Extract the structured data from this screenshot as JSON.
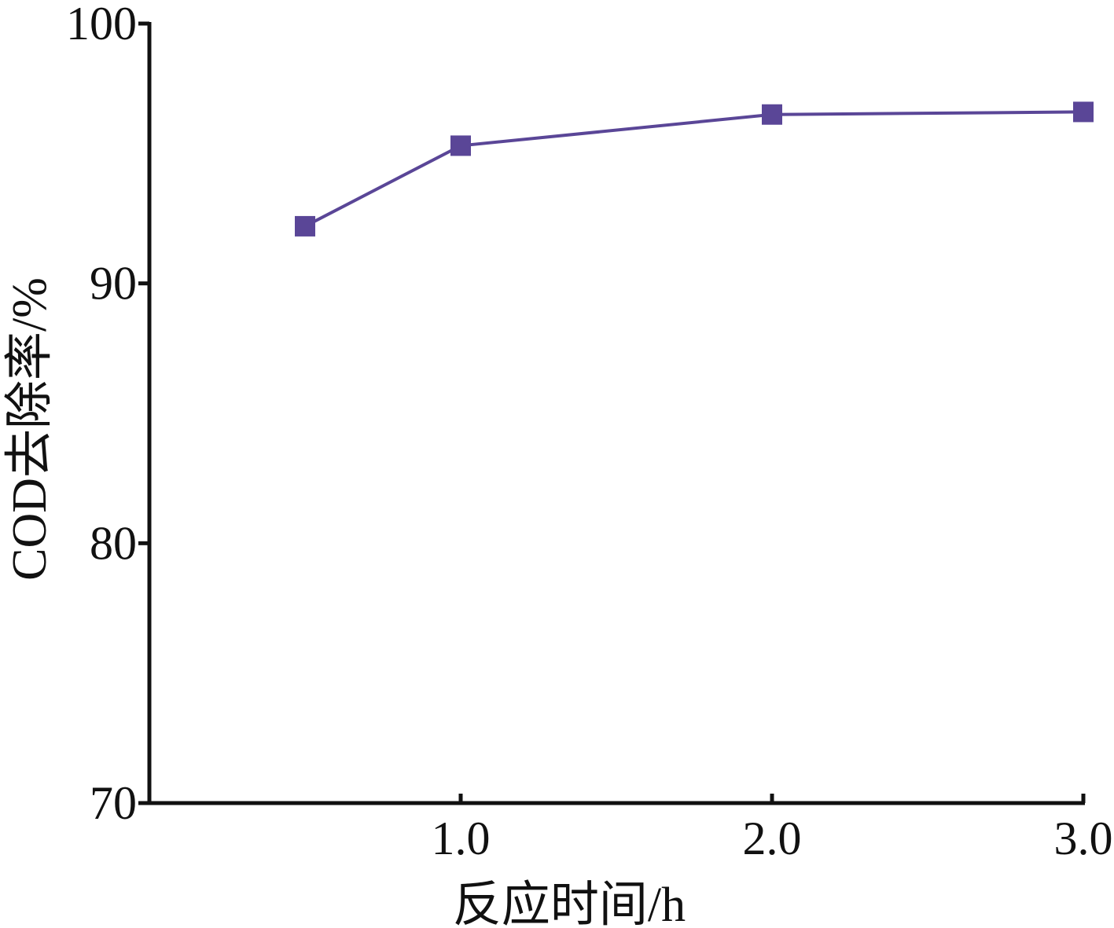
{
  "chart_data": {
    "type": "line",
    "title": "",
    "xlabel": "反应时间/h",
    "ylabel": "COD去除率/%",
    "xlim": [
      0.0,
      3.0
    ],
    "ylim": [
      70,
      100
    ],
    "x_ticks": [
      1.0,
      2.0,
      3.0
    ],
    "x_tick_labels": [
      "1.0",
      "2.0",
      "3.0"
    ],
    "y_ticks": [
      70,
      80,
      90,
      100
    ],
    "y_tick_labels": [
      "70",
      "80",
      "90",
      "100"
    ],
    "grid": false,
    "colors": {
      "series": "#5a4697",
      "axis": "#111111"
    },
    "series": [
      {
        "x": [
          0.5,
          1.0,
          2.0,
          3.0
        ],
        "y": [
          92.2,
          95.3,
          96.5,
          96.6
        ],
        "marker": "square"
      }
    ]
  }
}
